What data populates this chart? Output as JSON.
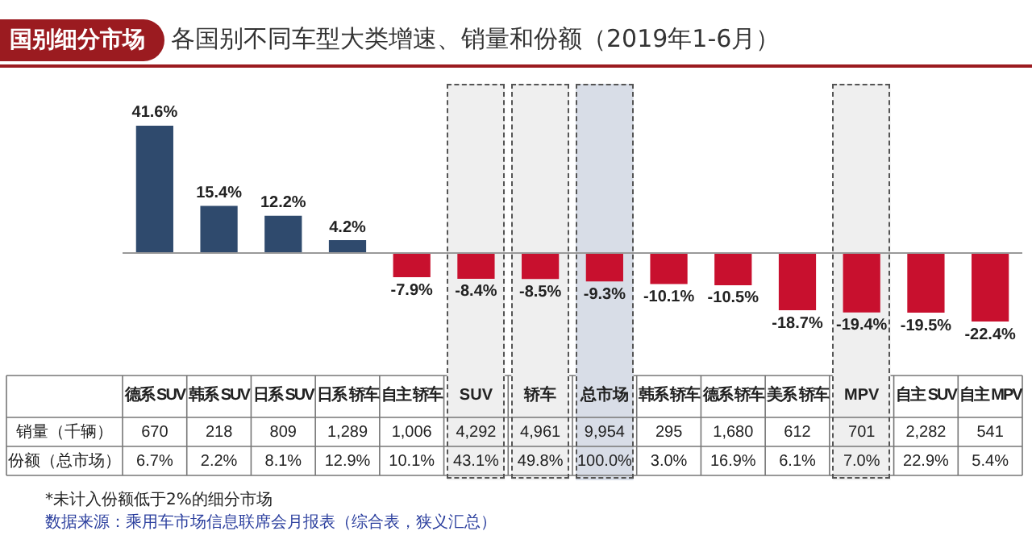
{
  "chart_data": [
    {
      "type": "bar",
      "title": "各国别不同车型大类增速、销量和份额（2019年1-6月）",
      "subtitle": "国别细分市场",
      "categories": [
        "德系 SUV",
        "韩系 SUV",
        "日系 SUV",
        "日系 轿车",
        "自主 轿车",
        "SUV",
        "轿车",
        "总市场",
        "韩系 轿车",
        "德系 轿车",
        "美系 轿车",
        "MPV",
        "自主 SUV",
        "自主 MPV"
      ],
      "values": [
        41.6,
        15.4,
        12.2,
        4.2,
        -7.9,
        -8.4,
        -8.5,
        -9.3,
        -10.1,
        -10.5,
        -18.7,
        -19.4,
        -19.5,
        -22.4
      ],
      "value_labels": [
        "41.6%",
        "15.4%",
        "12.2%",
        "4.2%",
        "-7.9%",
        "-8.4%",
        "-8.5%",
        "-9.3%",
        "-10.1%",
        "-10.5%",
        "-18.7%",
        "-19.4%",
        "-19.5%",
        "-22.4%"
      ],
      "colors": [
        "#2f4a6d",
        "#2f4a6d",
        "#2f4a6d",
        "#2f4a6d",
        "#c8102e",
        "#c8102e",
        "#c8102e",
        "#c8102e",
        "#c8102e",
        "#c8102e",
        "#c8102e",
        "#c8102e",
        "#c8102e",
        "#c8102e"
      ],
      "bands": [
        {
          "axis": "x",
          "from": "SUV",
          "to": "SUV",
          "color": "#efefef"
        },
        {
          "axis": "x",
          "from": "轿车",
          "to": "轿车",
          "color": "#efefef"
        },
        {
          "axis": "x",
          "from": "总市场",
          "to": "总市场",
          "color": "#d8dde7"
        },
        {
          "axis": "x",
          "from": "MPV",
          "to": "MPV",
          "color": "#efefef"
        }
      ]
    },
    {
      "type": "heatmap",
      "categories": [
        null,
        null,
        null,
        null,
        null,
        null,
        null,
        null,
        null,
        null,
        null,
        null,
        null,
        null
      ],
      "y_categories": [
        "销量（千辆）",
        "份额（总市场）"
      ],
      "cells": [
        [
          670,
          218,
          809,
          1289,
          1006,
          4292,
          4961,
          9954,
          295,
          1680,
          612,
          701,
          2282,
          541
        ],
        [
          6.7,
          2.2,
          8.1,
          12.9,
          10.1,
          43.1,
          49.8,
          100.0,
          3.0,
          16.9,
          6.1,
          7.0,
          22.9,
          5.4
        ]
      ],
      "cell_labels": [
        [
          "670",
          "218",
          "809",
          "1,289",
          "1,006",
          "4,292",
          "4,961",
          "9,954",
          "295",
          "1,680",
          "612",
          "701",
          "2,282",
          "541"
        ],
        [
          "6.7%",
          "2.2%",
          "8.1%",
          "12.9%",
          "10.1%",
          "43.1%",
          "49.8%",
          "100.0%",
          "3.0%",
          "16.9%",
          "6.1%",
          "7.0%",
          "22.9%",
          "5.4%"
        ]
      ],
      "annotations": [
        "*未计入份额低于2%的细分市场",
        "数据来源：乘用车市场信息联席会月报表（综合表，狭义汇总）"
      ]
    }
  ]
}
